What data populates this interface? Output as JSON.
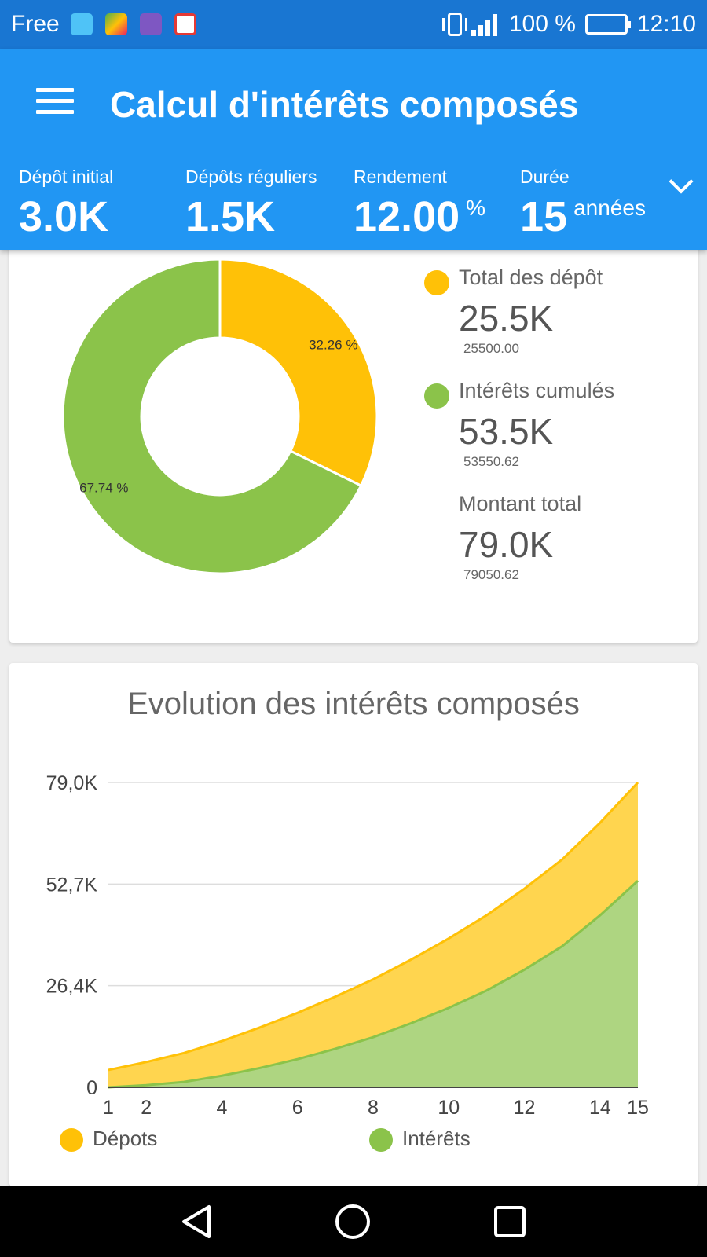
{
  "status_bar": {
    "carrier": "Free",
    "battery": "100 %",
    "time": "12:10",
    "notification_icons": [
      "android-icon",
      "play-games-icon",
      "app-icon",
      "gmail-icon"
    ]
  },
  "appbar": {
    "title": "Calcul d'intérêts composés",
    "params": [
      {
        "label": "Dépôt initial",
        "value": "3.0K",
        "unit": ""
      },
      {
        "label": "Dépôts réguliers",
        "value": "1.5K",
        "unit": ""
      },
      {
        "label": "Rendement",
        "value": "12.00",
        "unit": "%"
      },
      {
        "label": "Durée",
        "value": "15",
        "unit": "années"
      }
    ]
  },
  "colors": {
    "status_bar": "#1976d2",
    "appbar": "#2196f3",
    "deposits": "#ffc107",
    "interests": "#8bc34a"
  },
  "summary": {
    "deposits": {
      "label": "Total des dépôt",
      "short": "25.5K",
      "exact": "25500.00"
    },
    "interests": {
      "label": "Intérêts cumulés",
      "short": "53.5K",
      "exact": "53550.62"
    },
    "total": {
      "label": "Montant total",
      "short": "79.0K",
      "exact": "79050.62"
    }
  },
  "chart_data": [
    {
      "type": "pie",
      "donut": true,
      "slices": [
        {
          "label": "Dépots",
          "value": 32.26,
          "text": "32.26 %",
          "color": "#ffc107"
        },
        {
          "label": "Intérêts",
          "value": 67.74,
          "text": "67.74 %",
          "color": "#8bc34a"
        }
      ]
    },
    {
      "type": "area",
      "stacked": true,
      "title": "Evolution des intérêts composés",
      "x": [
        1,
        2,
        3,
        4,
        5,
        6,
        7,
        8,
        9,
        10,
        11,
        12,
        13,
        14,
        15
      ],
      "x_ticks": [
        "1",
        "2",
        "4",
        "6",
        "8",
        "10",
        "12",
        "14",
        "15"
      ],
      "x_tick_values": [
        1,
        2,
        4,
        6,
        8,
        10,
        12,
        14,
        15
      ],
      "y_ticks": [
        "0",
        "26,4K",
        "52,7K",
        "79,0K"
      ],
      "y_tick_values": [
        0,
        26350,
        52700,
        79050
      ],
      "ylim": [
        0,
        79050
      ],
      "grid": true,
      "legend_position": "bottom",
      "series": [
        {
          "name": "Intérêts",
          "color": "#8bc34a",
          "values": [
            0,
            560,
            1400,
            3000,
            5000,
            7300,
            10000,
            13000,
            16600,
            20600,
            25100,
            30500,
            36600,
            44600,
            53550
          ]
        },
        {
          "name": "Dépots",
          "color": "#ffc107",
          "values": [
            4500,
            6000,
            7500,
            9000,
            10500,
            12000,
            13500,
            15000,
            16500,
            18000,
            19500,
            21000,
            22500,
            24000,
            25500
          ]
        }
      ]
    }
  ]
}
